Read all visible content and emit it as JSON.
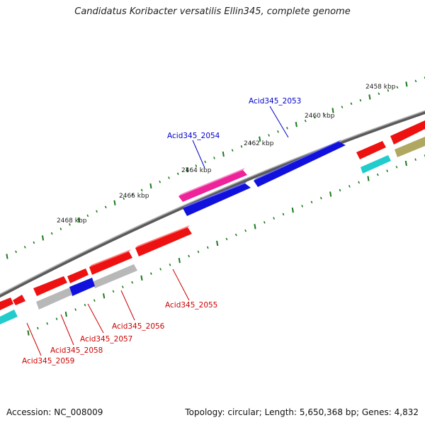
{
  "title": "Candidatus Koribacter versatilis Ellin345, complete genome",
  "footer": {
    "accession": "Accession: NC_008009",
    "summary": "Topology: circular; Length: 5,650,368 bp; Genes: 4,832"
  },
  "scale_labels": [
    {
      "name": "tick-label-2458",
      "text": "2458 kbp"
    },
    {
      "name": "tick-label-2460",
      "text": "2460 kbp"
    },
    {
      "name": "tick-label-2462",
      "text": "2462 kbp"
    },
    {
      "name": "tick-label-2464",
      "text": "2464 kbp"
    },
    {
      "name": "tick-label-2466",
      "text": "2466 kbp"
    },
    {
      "name": "tick-label-2468",
      "text": "2468 kbp"
    }
  ],
  "gene_labels": [
    {
      "name": "gene-label-acid345-2053",
      "text": "Acid345_2053",
      "color": "#0000cc"
    },
    {
      "name": "gene-label-acid345-2054",
      "text": "Acid345_2054",
      "color": "#0000cc"
    },
    {
      "name": "gene-label-acid345-2055",
      "text": "Acid345_2055",
      "color": "#cc0000"
    },
    {
      "name": "gene-label-acid345-2056",
      "text": "Acid345_2056",
      "color": "#cc0000"
    },
    {
      "name": "gene-label-acid345-2057",
      "text": "Acid345_2057",
      "color": "#cc0000"
    },
    {
      "name": "gene-label-acid345-2058",
      "text": "Acid345_2058",
      "color": "#cc0000"
    },
    {
      "name": "gene-label-acid345-2059",
      "text": "Acid345_2059",
      "color": "#cc0000"
    }
  ],
  "colors": {
    "backbone": "#8a8a8a",
    "tick": "#1a7a1a",
    "gene_red": "#ee1111",
    "gene_blue": "#1111dd",
    "gene_magenta": "#ee2299",
    "gene_gray": "#b8b8b8",
    "gene_cyan": "#22cccc",
    "gene_olive": "#b0a860"
  }
}
